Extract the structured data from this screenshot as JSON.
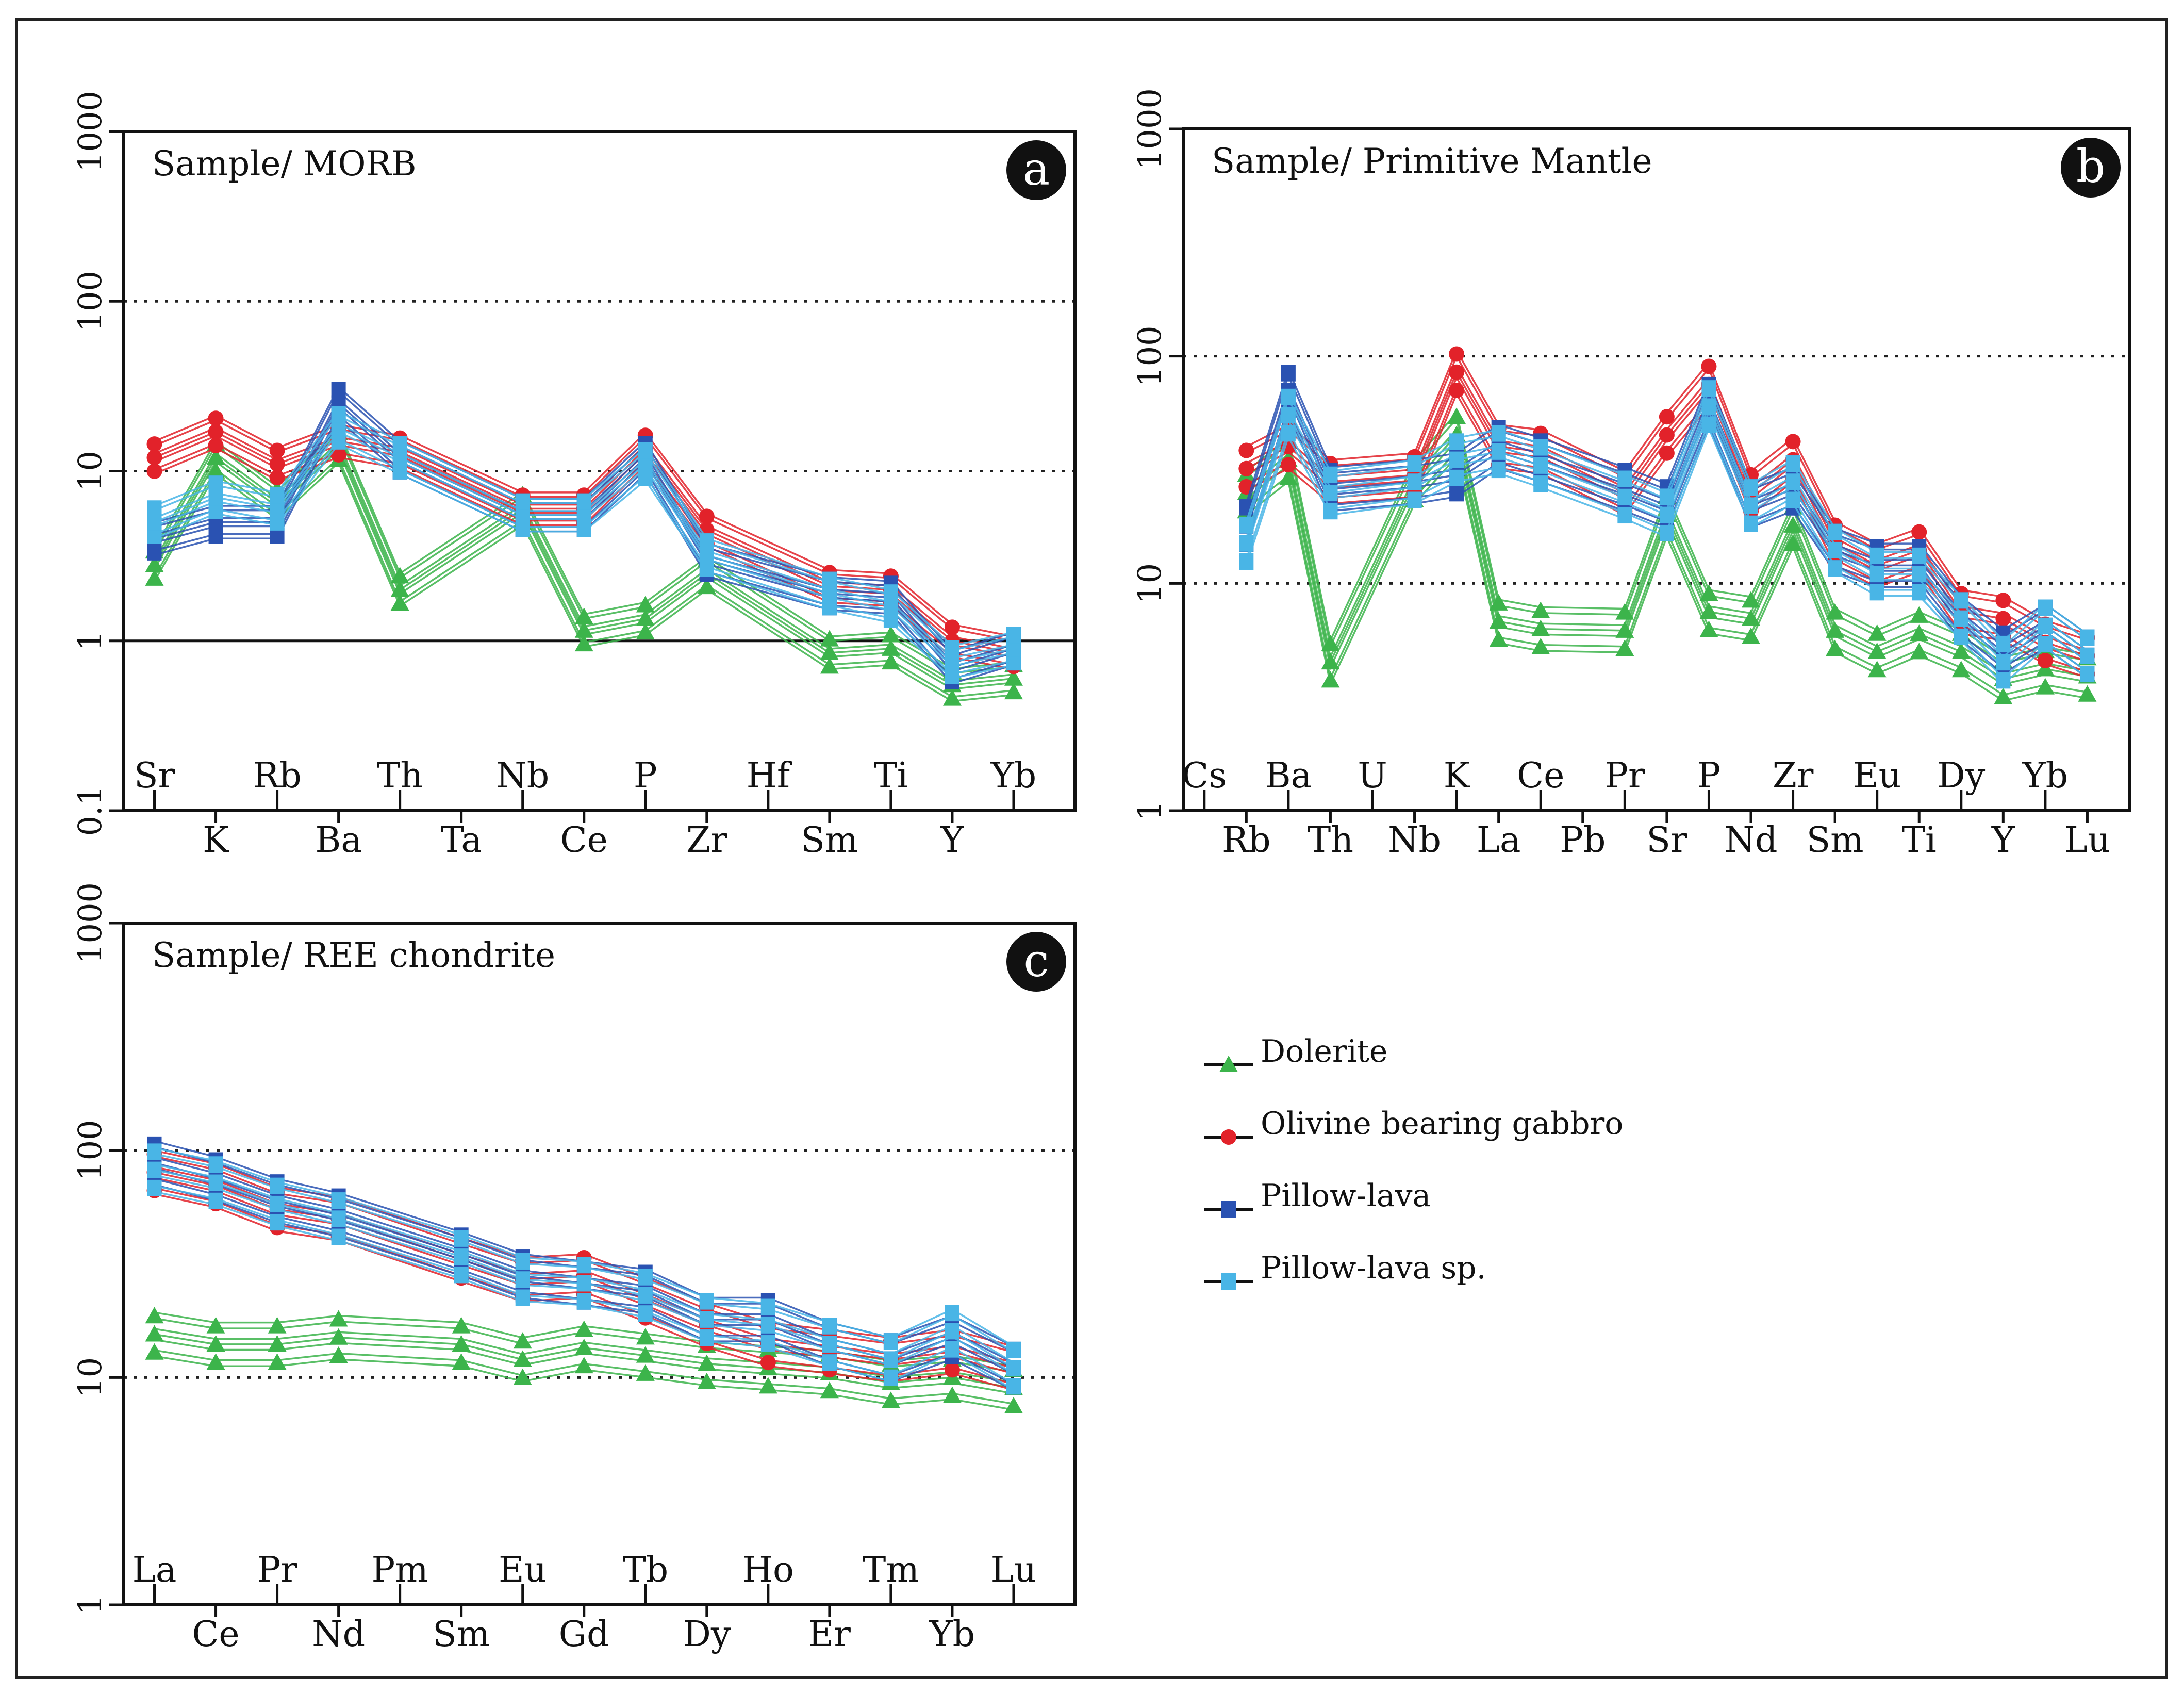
{
  "legend": {
    "items": [
      {
        "name": "Dolerite",
        "marker": "triangle",
        "color": "#3cb44b"
      },
      {
        "name": "Olivine bearing gabbro",
        "marker": "circle",
        "color": "#e2222a"
      },
      {
        "name": "Pillow-lava",
        "marker": "square",
        "color": "#2a52b2"
      },
      {
        "name": "Pillow-lava sp.",
        "marker": "square",
        "color": "#49b5e6"
      }
    ]
  },
  "chart_data": [
    {
      "id": "a",
      "type": "line",
      "title": "Sample/ MORB",
      "letter": "a",
      "yscale": "log",
      "ylim": [
        0.1,
        1000
      ],
      "yticks": [
        "0.1",
        "1",
        "10",
        "100",
        "1000"
      ],
      "dotted_lines": [
        10,
        100
      ],
      "solid_line": 1,
      "categories": [
        "Sr",
        "K",
        "Rb",
        "Ba",
        "Th",
        "Ta",
        "Nb",
        "Ce",
        "P",
        "Zr",
        "Hf",
        "Sm",
        "Ti",
        "Y",
        "Yb"
      ],
      "series": [
        {
          "name": "Dolerite",
          "values": [
            2.8,
            12,
            6.5,
            14,
            2.0,
            null,
            6.0,
            1.15,
            1.35,
            2.5,
            null,
            0.85,
            0.9,
            0.55,
            0.6
          ]
        },
        {
          "name": "Olivine bearing gabbro",
          "values": [
            12,
            17,
            11,
            15,
            13,
            null,
            6.0,
            6.0,
            13.5,
            4.5,
            null,
            2.1,
            2.0,
            1.0,
            0.85
          ]
        },
        {
          "name": "Pillow-lava",
          "values": [
            4.0,
            5.0,
            5.0,
            25,
            12,
            null,
            5.5,
            5.5,
            12,
            3.0,
            null,
            1.9,
            1.8,
            0.7,
            0.9
          ]
        },
        {
          "name": "Pillow-lava sp.",
          "values": [
            5.0,
            7.0,
            6.0,
            18,
            12,
            null,
            5.5,
            5.5,
            11,
            3.2,
            null,
            1.9,
            1.6,
            0.75,
            0.9
          ]
        }
      ]
    },
    {
      "id": "b",
      "type": "line",
      "title": "Sample/ Primitive Mantle",
      "letter": "b",
      "yscale": "log",
      "ylim": [
        1,
        1000
      ],
      "yticks": [
        "1",
        "10",
        "100",
        "1000"
      ],
      "dotted_lines": [
        10,
        100
      ],
      "solid_line": null,
      "categories": [
        "Cs",
        "Rb",
        "Ba",
        "Th",
        "U",
        "Nb",
        "K",
        "La",
        "Ce",
        "Pb",
        "Pr",
        "Sr",
        "P",
        "Nd",
        "Zr",
        "Sm",
        "Eu",
        "Ti",
        "Dy",
        "Y",
        "Yb",
        "Lu"
      ],
      "series": [
        {
          "name": "Dolerite",
          "values": [
            null,
            25,
            35,
            4.5,
            null,
            28,
            45,
            6.8,
            6.3,
            null,
            6.2,
            20,
            7.5,
            7.0,
            18,
            6.2,
            5.0,
            6.0,
            5.0,
            3.8,
            4.2,
            3.9
          ]
        },
        {
          "name": "Olivine bearing gabbro",
          "values": [
            null,
            32,
            40,
            28,
            null,
            30,
            85,
            40,
            38,
            null,
            25,
            45,
            75,
            25,
            35,
            15,
            12,
            14,
            7.5,
            7.0,
            5.5,
            4.8
          ]
        },
        {
          "name": "Pillow-lava",
          "values": [
            null,
            18,
            70,
            26,
            null,
            28,
            30,
            40,
            35,
            null,
            26,
            22,
            62,
            22,
            26,
            14,
            12,
            12,
            7.0,
            5.0,
            6.5,
            4.8
          ]
        },
        {
          "name": "Pillow-lava sp.",
          "values": [
            null,
            15,
            55,
            25,
            null,
            28,
            35,
            38,
            33,
            null,
            24,
            20,
            60,
            22,
            28,
            14,
            11,
            11,
            7.0,
            4.5,
            6.5,
            4.8
          ]
        }
      ]
    },
    {
      "id": "c",
      "type": "line",
      "title": "Sample/ REE chondrite",
      "letter": "c",
      "yscale": "log",
      "ylim": [
        1,
        1000
      ],
      "yticks": [
        "1",
        "10",
        "100",
        "1000"
      ],
      "dotted_lines": [
        10,
        100
      ],
      "solid_line": null,
      "categories": [
        "La",
        "Ce",
        "Pr",
        "Nd",
        "Pm",
        "Sm",
        "Eu",
        "Gd",
        "Tb",
        "Dy",
        "Ho",
        "Er",
        "Tm",
        "Yb",
        "Lu"
      ],
      "series": [
        {
          "name": "Dolerite",
          "values": [
            15.5,
            14,
            14,
            15,
            null,
            14,
            12,
            13.5,
            12.5,
            11.5,
            11,
            10.5,
            9.5,
            10,
            9
          ]
        },
        {
          "name": "Olivine bearing gabbro",
          "values": [
            80,
            70,
            55,
            50,
            null,
            33,
            27,
            28,
            22,
            17,
            14,
            13,
            12,
            13,
            11
          ]
        },
        {
          "name": "Pillow-lava",
          "values": [
            88,
            75,
            60,
            52,
            null,
            35,
            28,
            26,
            24,
            18,
            18,
            14,
            12,
            15,
            11
          ]
        },
        {
          "name": "Pillow-lava sp.",
          "values": [
            82,
            72,
            58,
            50,
            null,
            34,
            27,
            26,
            23,
            18,
            17,
            14,
            12,
            16,
            11
          ]
        }
      ]
    }
  ]
}
